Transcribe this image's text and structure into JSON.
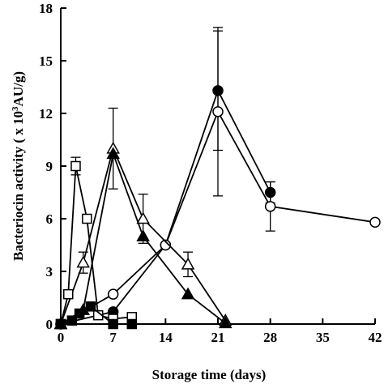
{
  "chart_data": {
    "type": "line",
    "xlabel": "Storage time (days)",
    "ylabel_main": "Bacteriocin activity ( x 10",
    "ylabel_sup": "3",
    "ylabel_unit": "AU/g)",
    "xlim": [
      0,
      42
    ],
    "ylim": [
      0,
      18
    ],
    "xticks": [
      0,
      7,
      14,
      21,
      28,
      35,
      42
    ],
    "yticks": [
      0,
      3,
      6,
      9,
      12,
      15,
      18
    ],
    "grid": false,
    "colors": {
      "line": "#000000",
      "filled": "#000000",
      "open": "#ffffff"
    },
    "series": [
      {
        "marker": "circle",
        "fill": "filled",
        "x": [
          0,
          7,
          14,
          21,
          28
        ],
        "y": [
          0,
          0.7,
          4.5,
          13.3,
          7.5
        ],
        "err": [
          0,
          0,
          0,
          3.4,
          0.6
        ]
      },
      {
        "marker": "circle",
        "fill": "open",
        "x": [
          0,
          7,
          14,
          21,
          28,
          42
        ],
        "y": [
          0,
          1.7,
          4.5,
          12.1,
          6.7,
          5.8
        ],
        "err": [
          0,
          0,
          0,
          4.8,
          1.4,
          0
        ]
      },
      {
        "marker": "triangle",
        "fill": "open",
        "x": [
          0,
          3,
          7,
          11,
          17,
          22
        ],
        "y": [
          0,
          3.5,
          10.0,
          6.0,
          3.4,
          0.2
        ],
        "err": [
          0,
          0.6,
          2.3,
          1.4,
          0.7,
          0
        ]
      },
      {
        "marker": "triangle",
        "fill": "filled",
        "x": [
          0,
          3,
          7,
          11,
          17,
          22
        ],
        "y": [
          0,
          0.8,
          9.7,
          5.0,
          1.7,
          0.05
        ],
        "err": [
          0,
          0,
          0,
          0,
          0,
          0
        ]
      },
      {
        "marker": "square",
        "fill": "open",
        "x": [
          0,
          1,
          2,
          3.5,
          5,
          7,
          9.5
        ],
        "y": [
          0,
          1.7,
          9.0,
          6.0,
          0.5,
          0.3,
          0.4
        ],
        "err": [
          0,
          0,
          0.5,
          0,
          0,
          0,
          0
        ]
      },
      {
        "marker": "square",
        "fill": "filled",
        "x": [
          0,
          1.5,
          2.5,
          4,
          7,
          9.5
        ],
        "y": [
          0,
          0.2,
          0.6,
          1.0,
          0,
          0
        ],
        "err": [
          0,
          0,
          0,
          0,
          0,
          0
        ]
      }
    ]
  }
}
